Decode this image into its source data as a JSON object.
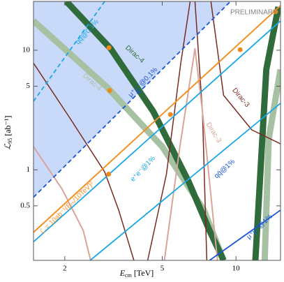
{
  "chart_data": {
    "type": "line",
    "x_label": {
      "symbol": "E",
      "sub": "cm",
      "unit": "[TeV]"
    },
    "y_label": {
      "symbol": "ℒ",
      "sub": "95",
      "unit": "[ab⁻¹]"
    },
    "log_x": true,
    "log_y": true,
    "xlim": [
      1.49,
      15.2
    ],
    "ylim": [
      0.175,
      25.6
    ],
    "xticks": [
      2,
      5,
      10
    ],
    "yticks": [
      0.5,
      1,
      5,
      10
    ],
    "series": [
      {
        "color": "#c9d9f9",
        "fill": true,
        "x": [
          1.49,
          9.5
        ],
        "y": [
          0.59,
          25.6
        ]
      },
      {
        "color": "#a7c2a2",
        "width": 9,
        "x": [
          1.49,
          2.98,
          5.0,
          7.4,
          8.9
        ],
        "y": [
          17.6,
          4.9,
          1.56,
          0.46,
          0.175
        ]
      },
      {
        "color": "#a7c2a2",
        "width": 9,
        "x": [
          15.2,
          13.6,
          13.1
        ],
        "y": [
          6.9,
          1.8,
          0.175
        ]
      },
      {
        "color": "#2f6b3b",
        "width": 9,
        "x": [
          2.03,
          3.08,
          4.6,
          6.4,
          7.8,
          8.9
        ],
        "y": [
          25.6,
          10.3,
          3.06,
          0.8,
          0.31,
          0.175
        ]
      },
      {
        "color": "#2f6b3b",
        "width": 9,
        "x": [
          14.9,
          13.3,
          12.0
        ],
        "y": [
          23,
          6.9,
          0.175
        ]
      },
      {
        "color": "#7a2a22",
        "width": 1.5,
        "x": [
          1.49,
          2.1,
          2.91,
          3.32,
          3.83
        ],
        "y": [
          7.8,
          2.7,
          0.96,
          0.46,
          0.175
        ]
      },
      {
        "color": "#7a2a22",
        "width": 1.5,
        "x": [
          4.36,
          5.2,
          5.95,
          6.5
        ],
        "y": [
          0.175,
          0.92,
          7.8,
          25.6
        ]
      },
      {
        "color": "#7a2a22",
        "width": 1.5,
        "x": [
          6.8,
          7.3,
          7.6
        ],
        "y": [
          25.6,
          3.0,
          0.175
        ]
      },
      {
        "color": "#7a2a22",
        "width": 1.5,
        "x": [
          7.9,
          8.9,
          11.6,
          15.2
        ],
        "y": [
          25.6,
          4.2,
          2.16,
          1.65
        ]
      },
      {
        "color": "#d8a59b",
        "width": 2,
        "x": [
          1.49,
          1.95,
          2.38,
          2.55
        ],
        "y": [
          1.56,
          0.69,
          0.31,
          0.175
        ]
      },
      {
        "color": "#d8a59b",
        "width": 2,
        "x": [
          5.1,
          5.9,
          6.8,
          7.3,
          8.4
        ],
        "y": [
          0.175,
          1.56,
          10.3,
          3.06,
          0.175
        ]
      },
      {
        "color": "#1aa7e6",
        "width": 1.8,
        "dashed": true,
        "x": [
          1.49,
          2.91
        ],
        "y": [
          3.74,
          25.6
        ]
      },
      {
        "color": "#1a55d6",
        "width": 1.8,
        "dashed": true,
        "x": [
          1.49,
          9.5
        ],
        "y": [
          0.59,
          25.6
        ]
      },
      {
        "color": "#f39126",
        "width": 2,
        "x": [
          1.49,
          15.2
        ],
        "y": [
          0.3,
          23.6
        ]
      },
      {
        "color": "#1aa7e6",
        "width": 1.8,
        "x": [
          1.49,
          15.2
        ],
        "y": [
          0.25,
          17.6
        ]
      },
      {
        "color": "#1aa7e6",
        "width": 1.8,
        "x": [
          2.54,
          15.2
        ],
        "y": [
          0.175,
          3.6
        ]
      },
      {
        "color": "#1a55d6",
        "width": 1.8,
        "x": [
          7.8,
          15.2
        ],
        "y": [
          0.175,
          0.46
        ]
      },
      {
        "color": "#f08a1c",
        "markers": true,
        "x": [
          3.03,
          3.05,
          3.02,
          5.4,
          10.4,
          14.5
        ],
        "y": [
          10.5,
          4.6,
          0.92,
          2.9,
          10.1,
          21
        ]
      }
    ],
    "annotations": [
      {
        "text": "PRELIMINARY",
        "color": "#808080"
      },
      {
        "text": "Dirac-4",
        "color": "#2f6b3b"
      },
      {
        "text": "Dirac-4",
        "color": "#a7c2a2"
      },
      {
        "text": "Dirac-3",
        "color": "#7a2a22"
      },
      {
        "text": "Dirac-3",
        "color": "#d8a59b"
      },
      {
        "text": "qq̄@0.1%",
        "color": "#1aa7e6"
      },
      {
        "text": "μ⁺μ⁻@0.1%",
        "color": "#1a55d6"
      },
      {
        "text": "e⁺e⁻@1%",
        "color": "#1aa7e6"
      },
      {
        "text": "qq̄@1%",
        "color": "#1a55d6"
      },
      {
        "text": "μ⁺μ⁻@1%",
        "color": "#1a55d6"
      },
      {
        "text": "ℒ = 10ab⁻¹(Eₘ/10TeV)²",
        "color": "#f39126"
      }
    ]
  }
}
